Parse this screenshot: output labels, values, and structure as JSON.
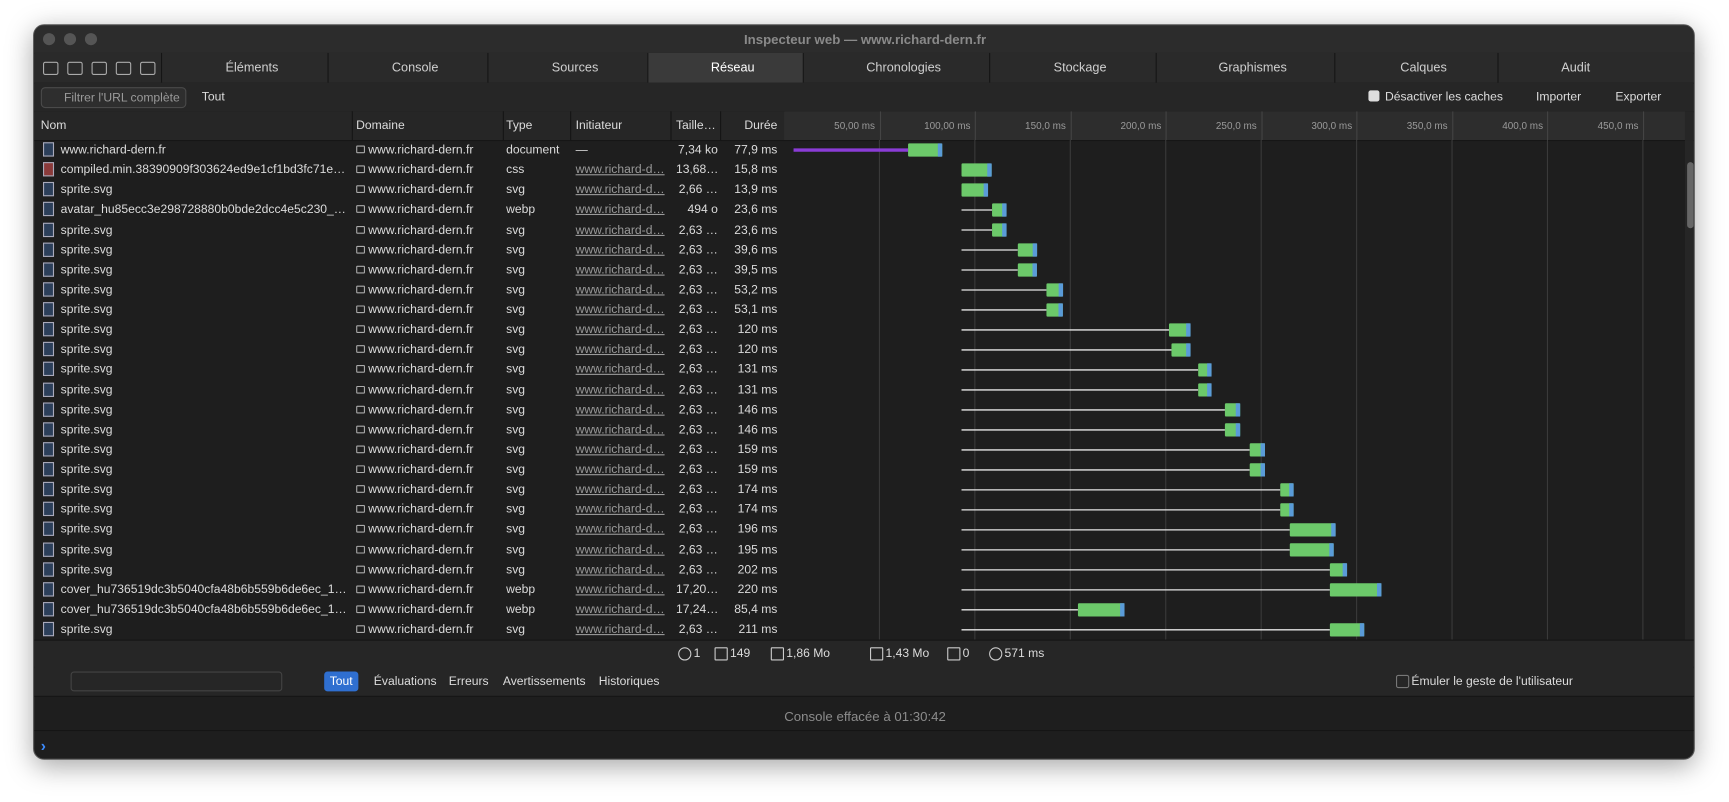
{
  "window": {
    "title": "Inspecteur web — www.richard-dern.fr"
  },
  "tabs": [
    "Éléments",
    "Console",
    "Sources",
    "Réseau",
    "Chronologies",
    "Stockage",
    "Graphismes",
    "Calques",
    "Audit"
  ],
  "selected_tab": 3,
  "filter": {
    "placeholder": "Filtrer l'URL complète",
    "scope": "Tout",
    "disable_cache": "Désactiver les caches",
    "import": "Importer",
    "export": "Exporter"
  },
  "columns": [
    "Nom",
    "Domaine",
    "Type",
    "Initiateur",
    "Taille…",
    "Durée"
  ],
  "timeline": {
    "xlim": [
      0,
      472
    ],
    "ticks": [
      {
        "value": 50,
        "label": "50,00 ms"
      },
      {
        "value": 100,
        "label": "100,00 ms"
      },
      {
        "value": 150,
        "label": "150,0 ms"
      },
      {
        "value": 200,
        "label": "200,0 ms"
      },
      {
        "value": 250,
        "label": "250,0 ms"
      },
      {
        "value": 300,
        "label": "300,0 ms"
      },
      {
        "value": 350,
        "label": "350,0 ms"
      },
      {
        "value": 400,
        "label": "400,0 ms"
      },
      {
        "value": 450,
        "label": "450,0 ms"
      }
    ]
  },
  "rows": [
    [
      "www.richard-dern.fr",
      "www.richard-dern.fr",
      "document",
      "—",
      "7,34 ko",
      "77,9 ms"
    ],
    [
      "compiled.min.38390909f303624ed9e1cf1bd3fc71e…",
      "www.richard-dern.fr",
      "css",
      "www.richard-d…",
      "13,68…",
      "15,8 ms"
    ],
    [
      "sprite.svg",
      "www.richard-dern.fr",
      "svg",
      "www.richard-d…",
      "2,66 …",
      "13,9 ms"
    ],
    [
      "avatar_hu85ecc3e298728880b0bde2dcc4e5c230_…",
      "www.richard-dern.fr",
      "webp",
      "www.richard-d…",
      "494 o",
      "23,6 ms"
    ],
    [
      "sprite.svg",
      "www.richard-dern.fr",
      "svg",
      "www.richard-d…",
      "2,63 …",
      "23,6 ms"
    ],
    [
      "sprite.svg",
      "www.richard-dern.fr",
      "svg",
      "www.richard-d…",
      "2,63 …",
      "39,6 ms"
    ],
    [
      "sprite.svg",
      "www.richard-dern.fr",
      "svg",
      "www.richard-d…",
      "2,63 …",
      "39,5 ms"
    ],
    [
      "sprite.svg",
      "www.richard-dern.fr",
      "svg",
      "www.richard-d…",
      "2,63 …",
      "53,2 ms"
    ],
    [
      "sprite.svg",
      "www.richard-dern.fr",
      "svg",
      "www.richard-d…",
      "2,63 …",
      "53,1 ms"
    ],
    [
      "sprite.svg",
      "www.richard-dern.fr",
      "svg",
      "www.richard-d…",
      "2,63 …",
      "120 ms"
    ],
    [
      "sprite.svg",
      "www.richard-dern.fr",
      "svg",
      "www.richard-d…",
      "2,63 …",
      "120 ms"
    ],
    [
      "sprite.svg",
      "www.richard-dern.fr",
      "svg",
      "www.richard-d…",
      "2,63 …",
      "131 ms"
    ],
    [
      "sprite.svg",
      "www.richard-dern.fr",
      "svg",
      "www.richard-d…",
      "2,63 …",
      "131 ms"
    ],
    [
      "sprite.svg",
      "www.richard-dern.fr",
      "svg",
      "www.richard-d…",
      "2,63 …",
      "146 ms"
    ],
    [
      "sprite.svg",
      "www.richard-dern.fr",
      "svg",
      "www.richard-d…",
      "2,63 …",
      "146 ms"
    ],
    [
      "sprite.svg",
      "www.richard-dern.fr",
      "svg",
      "www.richard-d…",
      "2,63 …",
      "159 ms"
    ],
    [
      "sprite.svg",
      "www.richard-dern.fr",
      "svg",
      "www.richard-d…",
      "2,63 …",
      "159 ms"
    ],
    [
      "sprite.svg",
      "www.richard-dern.fr",
      "svg",
      "www.richard-d…",
      "2,63 …",
      "174 ms"
    ],
    [
      "sprite.svg",
      "www.richard-dern.fr",
      "svg",
      "www.richard-d…",
      "2,63 …",
      "174 ms"
    ],
    [
      "sprite.svg",
      "www.richard-dern.fr",
      "svg",
      "www.richard-d…",
      "2,63 …",
      "196 ms"
    ],
    [
      "sprite.svg",
      "www.richard-dern.fr",
      "svg",
      "www.richard-d…",
      "2,63 …",
      "195 ms"
    ],
    [
      "sprite.svg",
      "www.richard-dern.fr",
      "svg",
      "www.richard-d…",
      "2,63 …",
      "202 ms"
    ],
    [
      "cover_hu736519dc3b5040cfa48b6b559b6de6ec_1…",
      "www.richard-dern.fr",
      "webp",
      "www.richard-d…",
      "17,20…",
      "220 ms"
    ],
    [
      "cover_hu736519dc3b5040cfa48b6b559b6de6ec_1…",
      "www.richard-dern.fr",
      "webp",
      "www.richard-d…",
      "17,24…",
      "85,4 ms"
    ],
    [
      "sprite.svg",
      "www.richard-dern.fr",
      "svg",
      "www.richard-d…",
      "2,63 …",
      "211 ms"
    ]
  ],
  "waterfall": {
    "start": [
      5,
      93,
      93,
      93,
      93,
      93,
      93,
      93,
      93,
      93,
      93,
      93,
      93,
      93,
      93,
      93,
      93,
      93,
      93,
      93,
      93,
      93,
      93,
      93,
      93
    ],
    "wait": [
      60,
      0,
      0,
      16,
      16,
      29.5,
      29.5,
      44.5,
      44.5,
      108.7,
      110,
      124,
      124,
      138,
      138,
      151,
      151,
      167,
      167,
      172,
      172,
      193,
      193,
      61,
      193
    ],
    "duration": [
      77.9,
      15.8,
      13.9,
      23.6,
      23.6,
      39.6,
      39.5,
      53.2,
      53.1,
      120,
      120,
      131,
      131,
      146,
      146,
      159,
      159,
      174,
      174,
      196,
      195,
      202,
      220,
      85.4,
      211
    ]
  },
  "status": [
    "1",
    "149",
    "1,86 Mo",
    "1,43 Mo",
    "0",
    "571 ms"
  ],
  "console": {
    "filters": [
      "Tout",
      "Évaluations",
      "Erreurs",
      "Avertissements",
      "Historiques"
    ],
    "emulate": "Émuler le geste de l'utilisateur",
    "message": "Console effacée à 01:30:42"
  }
}
